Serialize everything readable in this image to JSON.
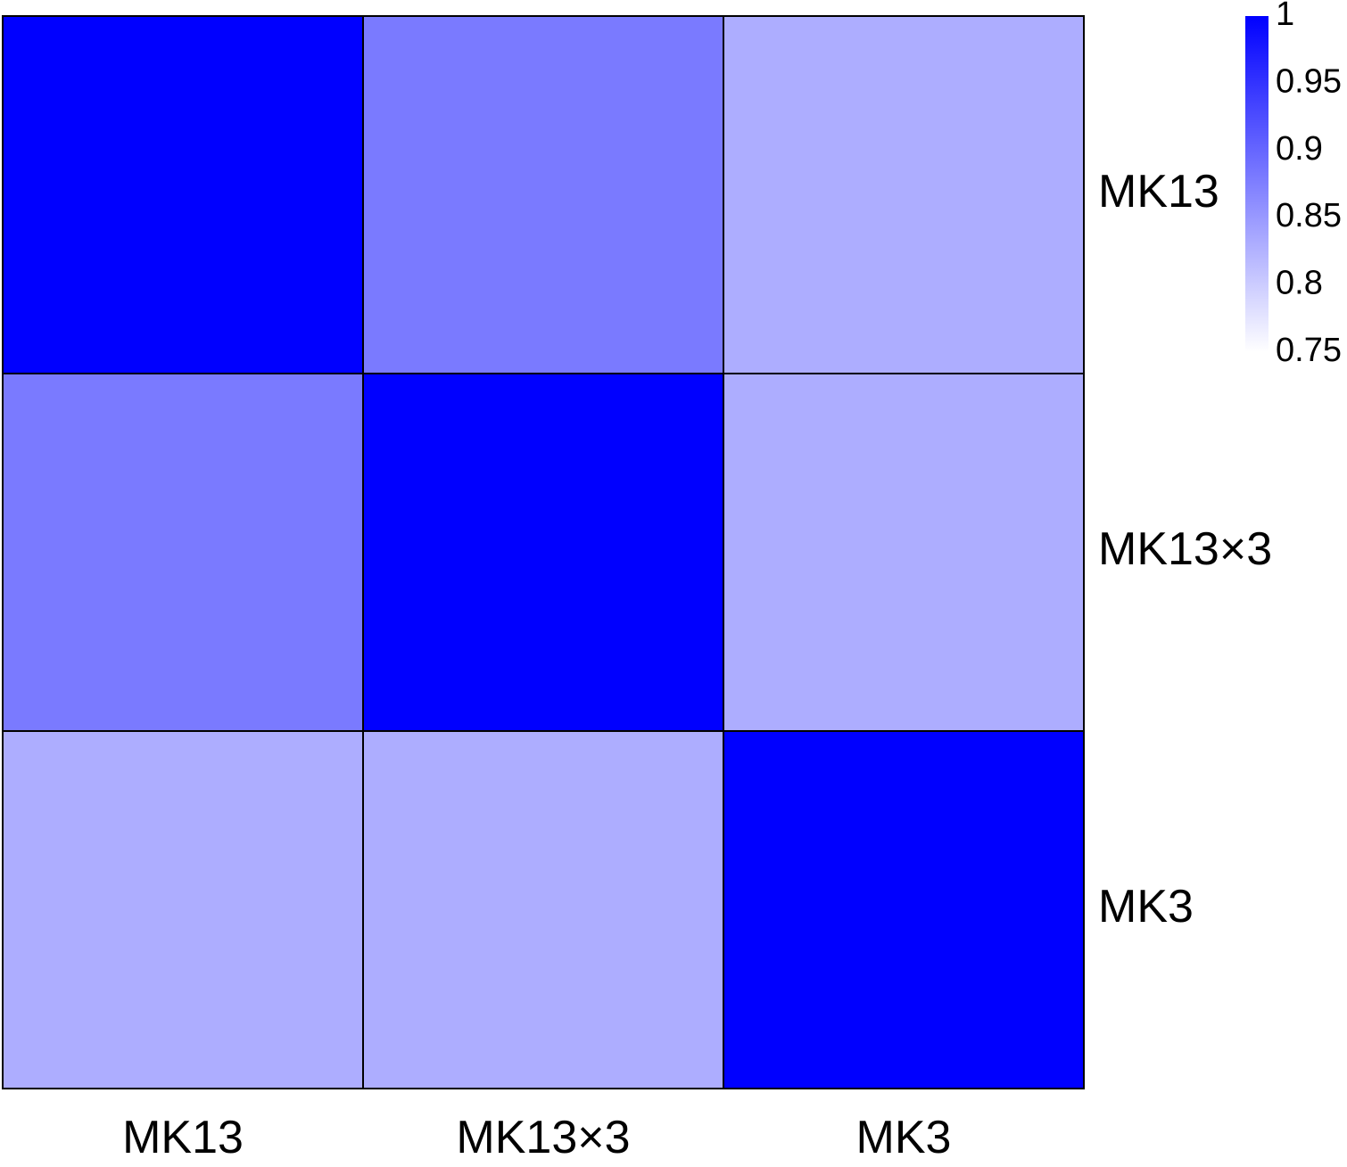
{
  "chart_data": {
    "type": "heatmap",
    "title": "",
    "x_categories": [
      "MK13",
      "MK13×3",
      "MK3"
    ],
    "y_categories": [
      "MK13",
      "MK13×3",
      "MK3"
    ],
    "values": [
      [
        1.0,
        0.88,
        0.83
      ],
      [
        0.88,
        1.0,
        0.83
      ],
      [
        0.83,
        0.83,
        1.0
      ]
    ],
    "colorbar": {
      "min": 0.75,
      "max": 1.0,
      "ticks": [
        "1",
        "0.95",
        "0.9",
        "0.85",
        "0.8",
        "0.75"
      ],
      "tick_values": [
        1.0,
        0.95,
        0.9,
        0.85,
        0.8,
        0.75
      ],
      "color_low": "#ffffff",
      "color_high": "#0000ff"
    },
    "grid": true,
    "legend_placement": "top-right"
  }
}
